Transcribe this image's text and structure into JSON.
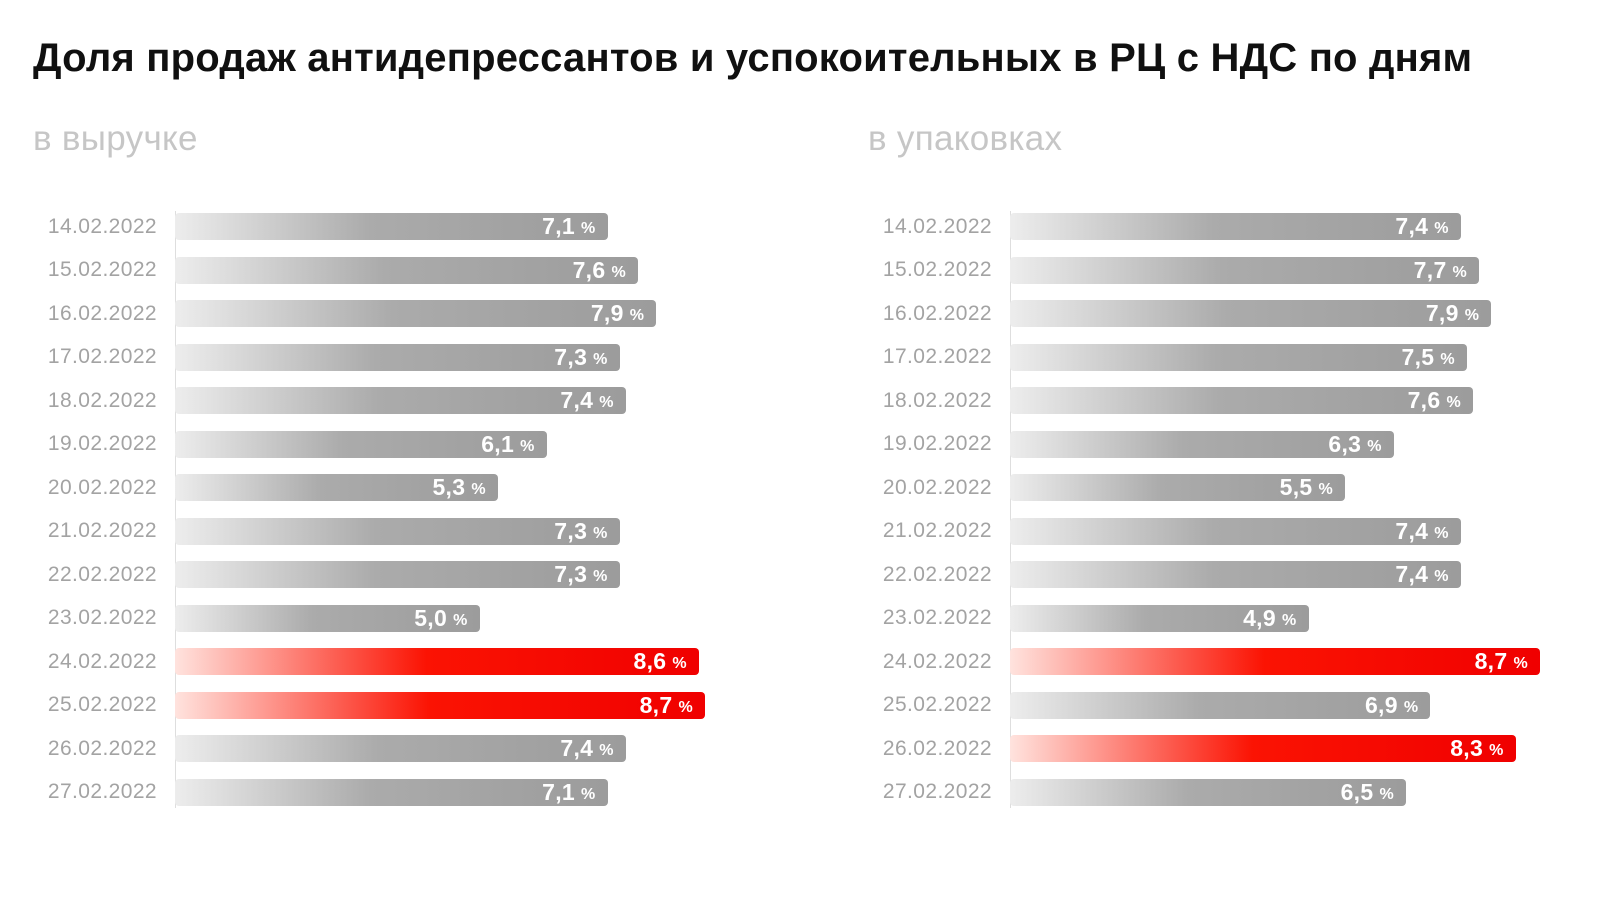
{
  "title": "Доля продаж антидепрессантов и успокоительных в РЦ с НДС по дням",
  "colors": {
    "bar_gray_start": "#ededed",
    "bar_gray_end": "#9c9c9c",
    "bar_highlight_start": "#ffe3de",
    "bar_highlight_end": "#f00000",
    "value_text": "#ffffff",
    "date_text": "#a3a3a3",
    "subtitle_text": "#c6c6c6",
    "title_text": "#101010"
  },
  "chart_data": [
    {
      "type": "bar",
      "orientation": "horizontal",
      "title": "в выручке",
      "unit": "%",
      "axis_max": 8.7,
      "xlim": [
        0,
        8.7
      ],
      "categories": [
        "14.02.2022",
        "15.02.2022",
        "16.02.2022",
        "17.02.2022",
        "18.02.2022",
        "19.02.2022",
        "20.02.2022",
        "21.02.2022",
        "22.02.2022",
        "23.02.2022",
        "24.02.2022",
        "25.02.2022",
        "26.02.2022",
        "27.02.2022"
      ],
      "values": [
        7.1,
        7.6,
        7.9,
        7.3,
        7.4,
        6.1,
        5.3,
        7.3,
        7.3,
        5.0,
        8.6,
        8.7,
        7.4,
        7.1
      ],
      "labels": [
        "7,1",
        "7,6",
        "7,9",
        "7,3",
        "7,4",
        "6,1",
        "5,3",
        "7,3",
        "7,3",
        "5,0",
        "8,6",
        "8,7",
        "7,4",
        "7,1"
      ],
      "highlight_indices": [
        10,
        11
      ],
      "highlight_dates": [
        "24.02.2022",
        "25.02.2022"
      ]
    },
    {
      "type": "bar",
      "orientation": "horizontal",
      "title": "в упаковках",
      "unit": "%",
      "axis_max": 8.7,
      "xlim": [
        0,
        8.7
      ],
      "categories": [
        "14.02.2022",
        "15.02.2022",
        "16.02.2022",
        "17.02.2022",
        "18.02.2022",
        "19.02.2022",
        "20.02.2022",
        "21.02.2022",
        "22.02.2022",
        "23.02.2022",
        "24.02.2022",
        "25.02.2022",
        "26.02.2022",
        "27.02.2022"
      ],
      "values": [
        7.4,
        7.7,
        7.9,
        7.5,
        7.6,
        6.3,
        5.5,
        7.4,
        7.4,
        4.9,
        8.7,
        6.9,
        8.3,
        6.5
      ],
      "labels": [
        "7,4",
        "7,7",
        "7,9",
        "7,5",
        "7,6",
        "6,3",
        "5,5",
        "7,4",
        "7,4",
        "4,9",
        "8,7",
        "6,9",
        "8,3",
        "6,5"
      ],
      "highlight_indices": [
        10,
        12
      ],
      "highlight_dates": [
        "24.02.2022",
        "26.02.2022"
      ]
    }
  ]
}
